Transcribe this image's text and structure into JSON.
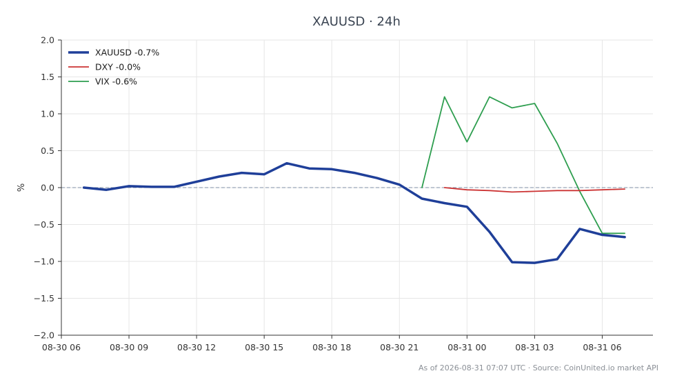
{
  "chart_data": {
    "type": "line",
    "title": "XAUUSD · 24h",
    "ylabel": "%",
    "xlabel": "",
    "ylim": [
      -2.0,
      2.0
    ],
    "yticks": [
      "2.0",
      "1.5",
      "1.0",
      "0.5",
      "0.0",
      "−0.5",
      "−1.0",
      "−1.5",
      "−2.0"
    ],
    "xticks": [
      "08-30 06",
      "08-30 09",
      "08-30 12",
      "08-30 15",
      "08-30 18",
      "08-30 21",
      "08-31 00",
      "08-31 03",
      "08-31 06"
    ],
    "xlim_hours": [
      0,
      26.25
    ],
    "grid": true,
    "zero_line": true,
    "legend_position": "top-left",
    "series": [
      {
        "name": "XAUUSD -0.7%",
        "color": "#1f3f99",
        "x": [
          1,
          2,
          3,
          4,
          5,
          6,
          7,
          8,
          9,
          10,
          11,
          12,
          13,
          14,
          15,
          16,
          17,
          18,
          19,
          20,
          21,
          22,
          23,
          24,
          25
        ],
        "values": [
          0.0,
          -0.03,
          0.02,
          0.01,
          0.01,
          0.08,
          0.15,
          0.2,
          0.18,
          0.33,
          0.26,
          0.25,
          0.2,
          0.13,
          0.04,
          -0.15,
          -0.21,
          -0.26,
          -0.6,
          -1.01,
          -1.02,
          -0.97,
          -0.56,
          -0.64,
          -0.67
        ]
      },
      {
        "name": "DXY -0.0%",
        "color": "#cc3333",
        "x": [
          17,
          18,
          19,
          20,
          21,
          22,
          23,
          24,
          25
        ],
        "values": [
          0.0,
          -0.03,
          -0.04,
          -0.06,
          -0.05,
          -0.04,
          -0.04,
          -0.03,
          -0.02
        ]
      },
      {
        "name": "VIX -0.6%",
        "color": "#2e9e4f",
        "x": [
          16,
          17,
          18,
          19,
          20,
          21,
          22,
          23,
          24,
          25
        ],
        "values": [
          0.0,
          1.23,
          0.62,
          1.23,
          1.08,
          1.14,
          0.6,
          -0.05,
          -0.62,
          -0.62
        ]
      }
    ]
  },
  "footer": {
    "text": "As of 2026-08-31 07:07 UTC · Source: CoinUnited.io market API"
  }
}
